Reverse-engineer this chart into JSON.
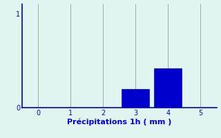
{
  "bar_positions": [
    3,
    4
  ],
  "bar_values": [
    0.2,
    0.42
  ],
  "bar_color": "#0000cc",
  "bar_edge_color": "#0000cc",
  "xlim": [
    -0.5,
    5.5
  ],
  "ylim": [
    0,
    1.1
  ],
  "yticks": [
    0,
    1
  ],
  "xticks": [
    0,
    1,
    2,
    3,
    4,
    5
  ],
  "xlabel": "Précipitations 1h ( mm )",
  "xlabel_color": "#0000dd",
  "xlabel_fontsize": 8,
  "tick_color": "#0000dd",
  "tick_fontsize": 7,
  "background_color": "#e0f5f0",
  "grid_color": "#999999",
  "axis_color": "#0000cc",
  "bar_width": 0.85
}
